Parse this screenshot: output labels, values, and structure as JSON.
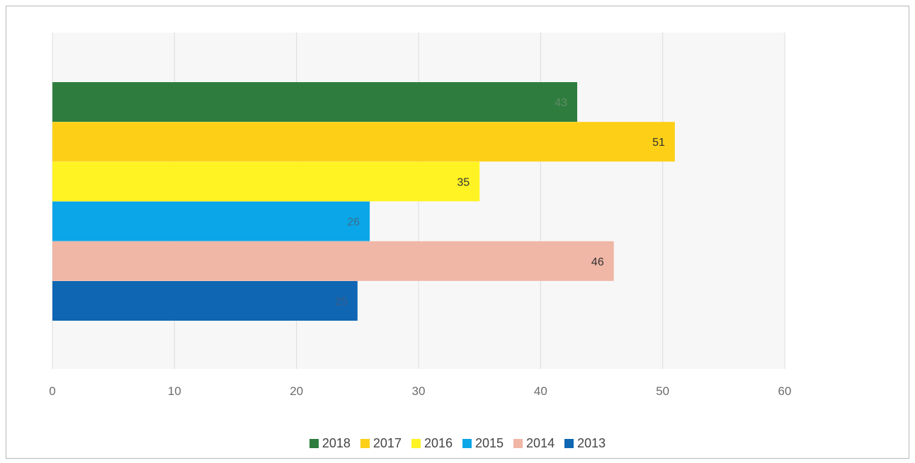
{
  "chart_data": {
    "type": "bar",
    "orientation": "horizontal",
    "categories": [
      "2018",
      "2017",
      "2016",
      "2015",
      "2014",
      "2013"
    ],
    "values": [
      43,
      51,
      35,
      26,
      46,
      25
    ],
    "colors": [
      "#2e7d3e",
      "#fdd017",
      "#fff323",
      "#0aa6e8",
      "#f0b6a6",
      "#0f66b3"
    ],
    "label_colors": [
      "#5e8b66",
      "#333333",
      "#333333",
      "#3d6f8a",
      "#333333",
      "#3a5f8a"
    ],
    "xlim": [
      0,
      60
    ],
    "x_ticks": [
      "0",
      "10",
      "20",
      "30",
      "40",
      "50",
      "60"
    ],
    "grid": true,
    "legend_position": "bottom",
    "legend": [
      "2018",
      "2017",
      "2016",
      "2015",
      "2014",
      "2013"
    ],
    "title": "",
    "xlabel": "",
    "ylabel": ""
  }
}
